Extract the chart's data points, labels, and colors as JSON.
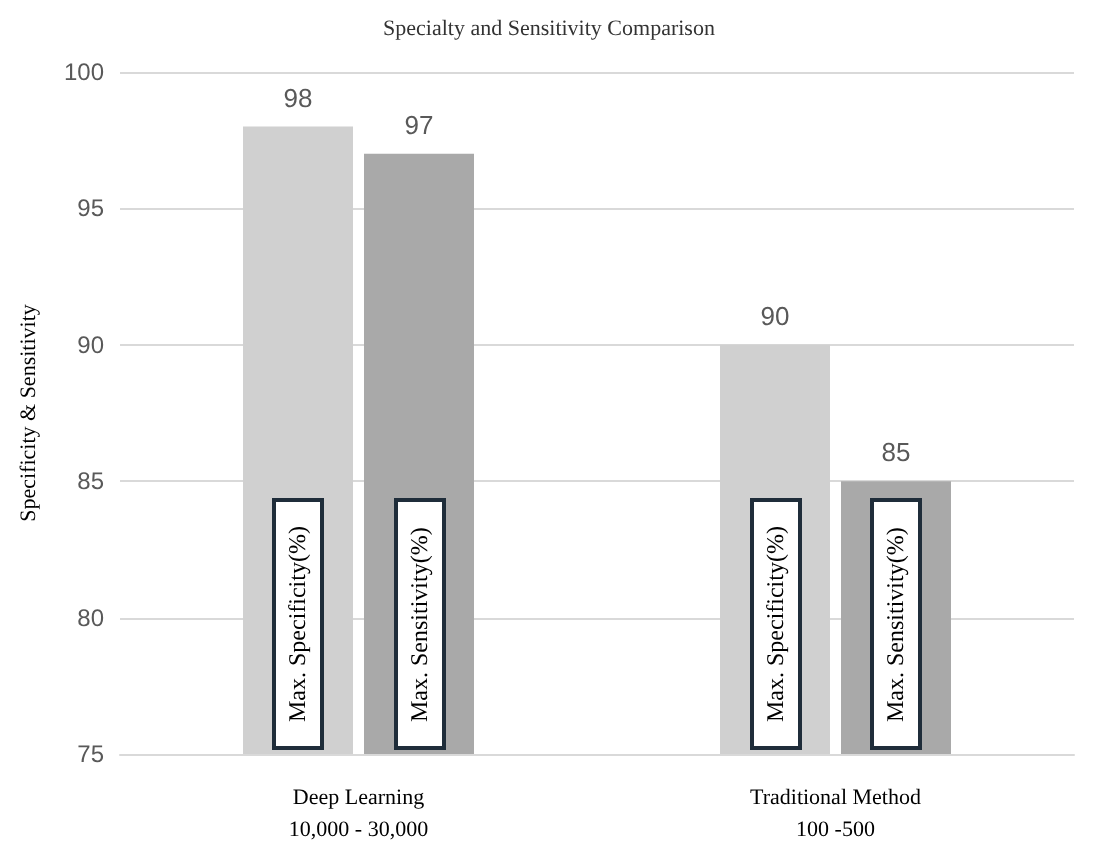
{
  "chart_data": {
    "type": "bar",
    "title": "Specialty and Sensitivity Comparison",
    "ylabel": "Specificity & Sensitivity",
    "categories": [
      "Deep Learning\n10,000 - 30,000",
      "Traditional Method\n100 -500"
    ],
    "series": [
      {
        "name": "Max. Specificity(%)",
        "color": "#d0d0d0",
        "values": [
          98,
          90
        ]
      },
      {
        "name": "Max. Sensitivity(%)",
        "color": "#a9a9a9",
        "values": [
          97,
          85
        ]
      }
    ],
    "ylim": [
      75,
      100
    ],
    "yticks": [
      75,
      80,
      85,
      90,
      95,
      100
    ],
    "grid": "y",
    "data_labels": true,
    "legend": false
  }
}
